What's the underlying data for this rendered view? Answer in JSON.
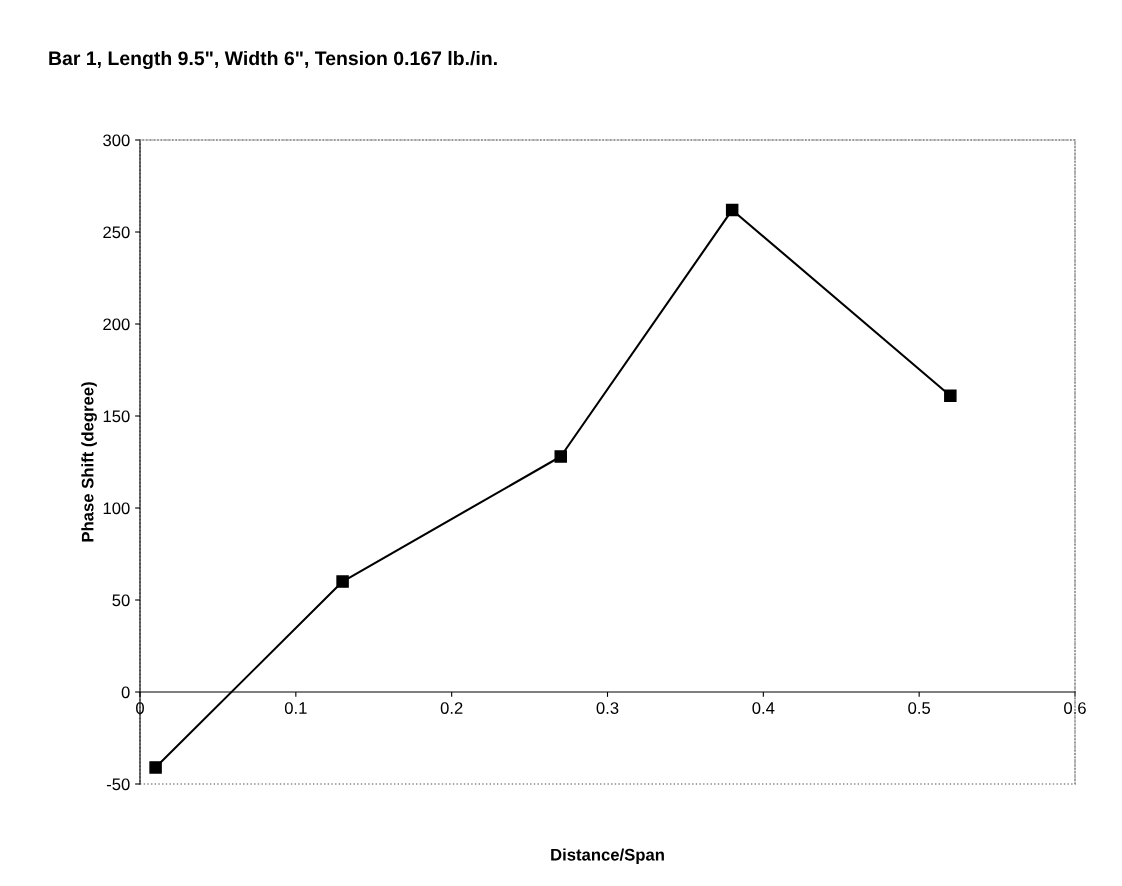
{
  "chart_data": {
    "type": "line",
    "title": "Bar 1, Length 9.5\", Width 6\", Tension 0.167 lb./in.",
    "xlabel": "Distance/Span",
    "ylabel": "Phase Shift (degree)",
    "x": [
      0.01,
      0.13,
      0.27,
      0.38,
      0.52
    ],
    "series": [
      {
        "color": "#000000",
        "values": [
          -41,
          60,
          128,
          262,
          161
        ]
      }
    ],
    "xlim": [
      0,
      0.6
    ],
    "xticks": [
      0,
      0.1,
      0.2,
      0.3,
      0.4,
      0.5,
      0.6
    ],
    "ylim": [
      -50,
      300
    ],
    "yticks": [
      -50,
      0,
      50,
      100,
      150,
      200,
      250,
      300
    ],
    "grid": false,
    "legend": false,
    "marker": "square",
    "line_style": "solid"
  }
}
